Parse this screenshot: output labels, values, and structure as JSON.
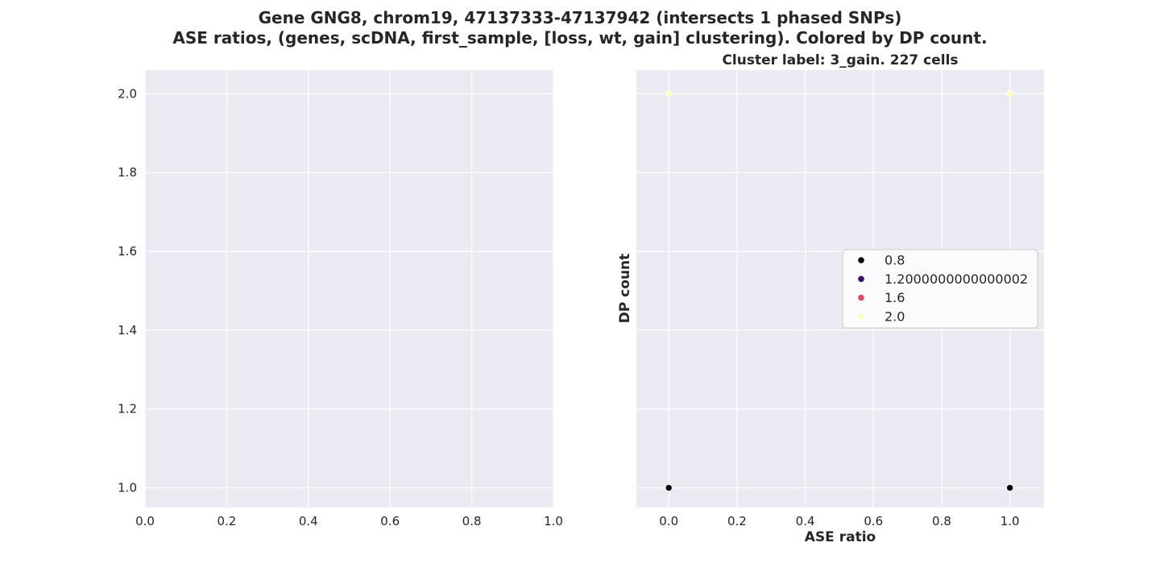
{
  "figure": {
    "title_line1": "Gene GNG8, chrom19, 47137333-47137942 (intersects 1 phased SNPs)",
    "title_line2": "ASE ratios, (genes, scDNA, first_sample, [loss, wt, gain] clustering). Colored by DP count."
  },
  "chart_data": [
    {
      "type": "scatter",
      "title": "",
      "xlabel": "",
      "ylabel": "",
      "xlim": [
        0.0,
        1.0
      ],
      "ylim": [
        0.95,
        2.06
      ],
      "xticks": [
        "0.0",
        "0.2",
        "0.4",
        "0.6",
        "0.8",
        "1.0"
      ],
      "yticks": [
        "1.0",
        "1.2",
        "1.4",
        "1.6",
        "1.8",
        "2.0"
      ],
      "xtick_values": [
        0.0,
        0.2,
        0.4,
        0.6,
        0.8,
        1.0
      ],
      "ytick_values": [
        1.0,
        1.2,
        1.4,
        1.6,
        1.8,
        2.0
      ],
      "grid": true,
      "points": []
    },
    {
      "type": "scatter",
      "title": "Cluster label: 3_gain. 227 cells",
      "xlabel": "ASE ratio",
      "ylabel": "DP count",
      "xlim": [
        -0.095,
        1.1
      ],
      "ylim": [
        0.95,
        2.06
      ],
      "xticks": [
        "0.0",
        "0.2",
        "0.4",
        "0.6",
        "0.8",
        "1.0"
      ],
      "xtick_values": [
        0.0,
        0.2,
        0.4,
        0.6,
        0.8,
        1.0
      ],
      "ytick_values": [
        1.0,
        1.2,
        1.4,
        1.6,
        1.8,
        2.0
      ],
      "grid": true,
      "points": [
        {
          "x": 0.0,
          "y": 2.0,
          "color": "#fcfdbf"
        },
        {
          "x": 1.0,
          "y": 2.0,
          "color": "#fcfdbf"
        },
        {
          "x": 0.0,
          "y": 1.0,
          "color": "#000004"
        },
        {
          "x": 1.0,
          "y": 1.0,
          "color": "#000004"
        }
      ],
      "legend": {
        "placement": "center-right",
        "entries": [
          {
            "label": "0.8",
            "color": "#000004"
          },
          {
            "label": "1.2000000000000002",
            "color": "#3b0f70"
          },
          {
            "label": "1.6",
            "color": "#de4968"
          },
          {
            "label": "2.0",
            "color": "#fcfdbf"
          }
        ]
      }
    }
  ],
  "colors": {
    "axes_bg": "#eaeaf2",
    "grid": "#ffffff",
    "text": "#262626"
  }
}
